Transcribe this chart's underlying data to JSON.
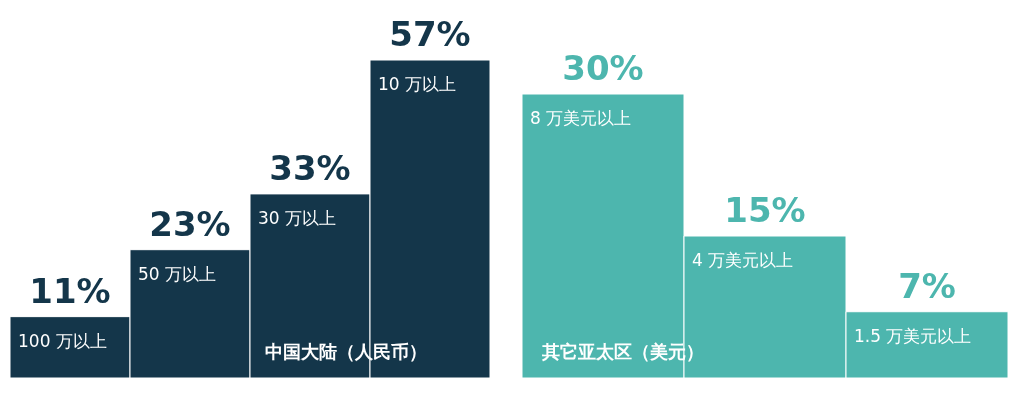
{
  "chart_data": [
    {
      "type": "bar",
      "xlabel": "中国大陆（人民币）",
      "categories": [
        "100 万以上",
        "50 万以上",
        "30 万以上",
        "10 万以上"
      ],
      "values": [
        11,
        23,
        33,
        57
      ],
      "value_labels": [
        "11%",
        "23%",
        "33%",
        "57%"
      ],
      "color": "#14364a"
    },
    {
      "type": "bar",
      "xlabel": "其它亚太区（美元）",
      "categories": [
        "8 万美元以上",
        "4 万美元以上",
        "1.5 万美元以上"
      ],
      "values": [
        30,
        15,
        7
      ],
      "value_labels": [
        "30%",
        "15%",
        "7%"
      ],
      "color": "#4db6ae"
    }
  ]
}
